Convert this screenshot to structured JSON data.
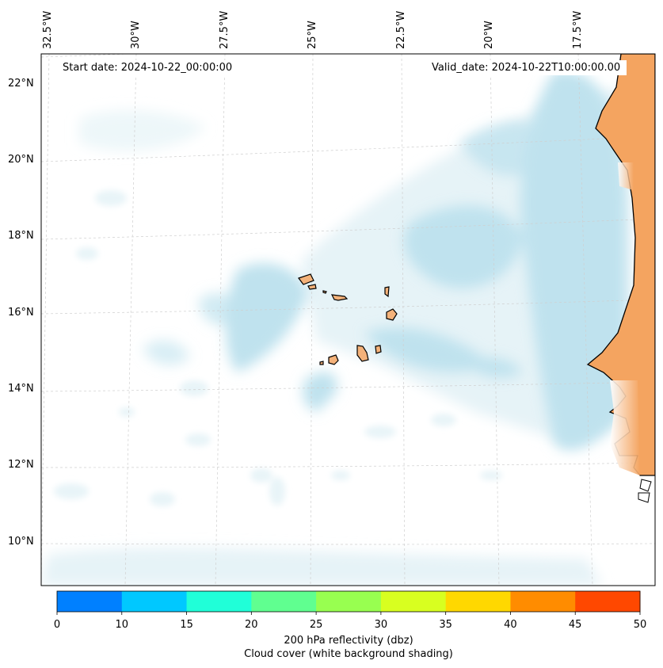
{
  "header": {
    "start_date": "Start date: 2024-10-22_00:00:00",
    "valid_date": "Valid_date: 2024-10-22T10:00:00.00"
  },
  "axes": {
    "lon_labels": [
      "32.5°W",
      "30°W",
      "27.5°W",
      "25°W",
      "22.5°W",
      "20°W",
      "17.5°W"
    ],
    "lat_labels": [
      "22°N",
      "20°N",
      "18°N",
      "16°N",
      "14°N",
      "12°N",
      "10°N"
    ],
    "gridlines": "dashed"
  },
  "colorbar": {
    "ticks": [
      "0",
      "10",
      "15",
      "20",
      "25",
      "30",
      "35",
      "40",
      "45",
      "50"
    ],
    "colors": [
      "#0080ff",
      "#00c8ff",
      "#20ffd8",
      "#60ff90",
      "#98ff50",
      "#d8ff20",
      "#ffd800",
      "#ff8c00",
      "#ff4800"
    ],
    "label": "200 hPa reflectivity (dbz)",
    "sublabel": "Cloud cover (white background shading)"
  },
  "colors": {
    "land": "#f4a460",
    "cloud": "#a8d8e8",
    "ocean": "#ffffff"
  }
}
